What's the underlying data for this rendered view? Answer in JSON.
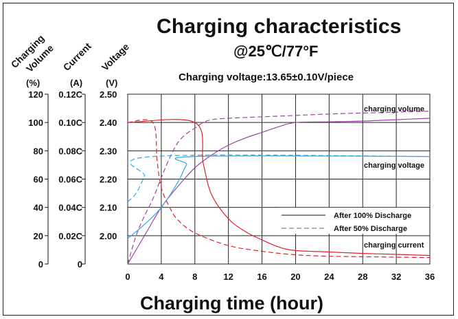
{
  "title": "Charging characteristics",
  "subtitle": "@25℃/77°F",
  "voltage_note": "Charging voltage:13.65±0.10V/piece",
  "axis_heads": {
    "volume": [
      "Charging",
      "Volume"
    ],
    "current": "Current",
    "voltage": "Voltage"
  },
  "units": {
    "volume": "(%)",
    "current": "(A)",
    "voltage": "(V)"
  },
  "colors": {
    "volume": "#a040a8",
    "voltage": "#35a6e0",
    "current": "#e0202c",
    "grid": "#222222"
  },
  "chart_data": {
    "type": "line",
    "title": "Charging characteristics",
    "xlabel": "Charging time (hour)",
    "x_ticks": [
      0,
      4,
      8,
      12,
      16,
      20,
      24,
      28,
      32,
      36
    ],
    "xlim": [
      0,
      36
    ],
    "y_axes": [
      {
        "label": "Charging Volume",
        "unit": "(%)",
        "ticks": [
          "0",
          "20",
          "40",
          "60",
          "80",
          "100",
          "120"
        ],
        "range": [
          0,
          120
        ]
      },
      {
        "label": "Current",
        "unit": "(A)",
        "ticks": [
          "0",
          "0.02C",
          "0.04C",
          "0.06C",
          "0.08C",
          "0.10C",
          "0.12C"
        ],
        "range": [
          0,
          0.12
        ]
      },
      {
        "label": "Voltage",
        "unit": "(V)",
        "ticks": [
          "2.00",
          "2.10",
          "2.20",
          "2.30",
          "2.40",
          "2.50"
        ],
        "range": [
          1.9,
          2.5
        ]
      }
    ],
    "legend": [
      {
        "label": "After 100% Discharge",
        "style": "solid"
      },
      {
        "label": "After  50% Discharge",
        "style": "dashed"
      }
    ],
    "annotations": [
      "charging volume",
      "charging voltage",
      "charging current"
    ],
    "series": [
      {
        "name": "charging volume",
        "style": "solid",
        "axis": "volume",
        "x": [
          0,
          2,
          4,
          6,
          8,
          10,
          12,
          14,
          16,
          18,
          20,
          24,
          28,
          32,
          36
        ],
        "values": [
          0,
          20,
          40,
          55,
          68,
          77,
          84,
          89,
          93,
          97,
          100,
          100.5,
          101,
          102,
          103
        ]
      },
      {
        "name": "charging volume",
        "style": "dashed",
        "axis": "volume",
        "x": [
          0,
          1,
          2,
          3,
          4,
          5,
          6,
          7,
          8,
          9,
          10,
          12,
          16,
          20,
          24,
          30,
          36
        ],
        "values": [
          0,
          20,
          34,
          46,
          61,
          75,
          86,
          92,
          96,
          100,
          102,
          103,
          104,
          105,
          106,
          107,
          108
        ]
      },
      {
        "name": "charging voltage",
        "style": "solid",
        "axis": "voltage",
        "x": [
          0,
          2,
          4,
          6,
          7,
          8,
          36
        ],
        "values": [
          1.99,
          2.04,
          2.1,
          2.19,
          2.25,
          2.28,
          2.28
        ]
      },
      {
        "name": "charging voltage",
        "style": "dashed",
        "axis": "voltage",
        "x": [
          0,
          1,
          2,
          3,
          36
        ],
        "values": [
          2.12,
          2.15,
          2.21,
          2.28,
          2.28
        ]
      },
      {
        "name": "charging current",
        "style": "solid",
        "axis": "current",
        "x": [
          0,
          8,
          9,
          10,
          12,
          14,
          16,
          18,
          20,
          24,
          28,
          32,
          36
        ],
        "values": [
          0.1,
          0.1,
          0.071,
          0.049,
          0.032,
          0.023,
          0.017,
          0.012,
          0.0095,
          0.0085,
          0.0075,
          0.0068,
          0.006
        ]
      },
      {
        "name": "charging current",
        "style": "dashed",
        "axis": "current",
        "x": [
          0,
          3,
          3.5,
          4,
          5,
          6,
          8,
          12,
          16,
          20,
          24,
          30,
          36
        ],
        "values": [
          0.1,
          0.1,
          0.073,
          0.054,
          0.04,
          0.031,
          0.022,
          0.013,
          0.009,
          0.0065,
          0.0055,
          0.005,
          0.0045
        ]
      }
    ]
  }
}
